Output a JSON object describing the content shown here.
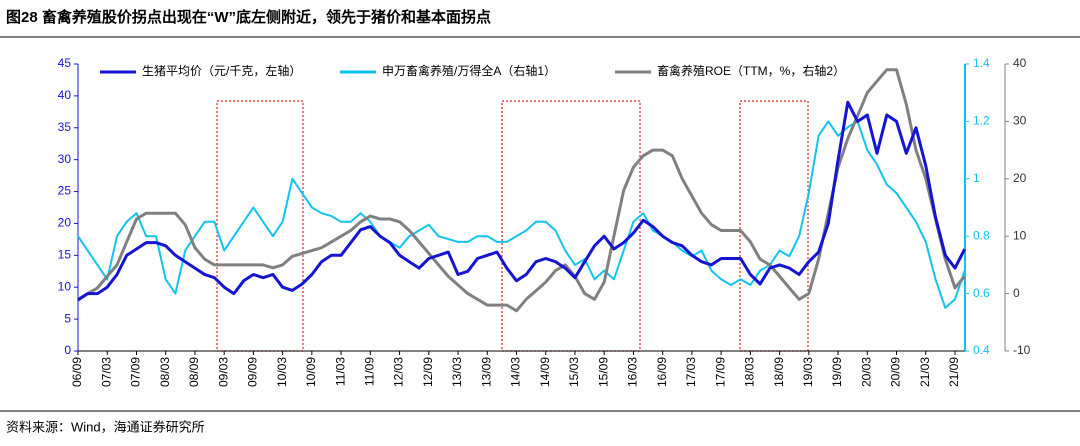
{
  "chart_data": {
    "type": "line",
    "title": "图28 畜禽养殖股价拐点出现在“W”底左侧附近，领先于猪价和基本面拐点",
    "source": "资料来源：Wind，海通证券研究所",
    "categories": [
      "06/09",
      null,
      null,
      "07/03",
      null,
      null,
      "07/09",
      null,
      null,
      "08/03",
      null,
      null,
      "08/09",
      null,
      null,
      "09/03",
      null,
      null,
      "09/09",
      null,
      null,
      "10/03",
      null,
      null,
      "10/09",
      null,
      null,
      "11/03",
      null,
      null,
      "11/09",
      null,
      null,
      "12/03",
      null,
      null,
      "12/09",
      null,
      null,
      "13/03",
      null,
      null,
      "13/09",
      null,
      null,
      "14/03",
      null,
      null,
      "14/09",
      null,
      null,
      "15/03",
      null,
      null,
      "15/09",
      null,
      null,
      "16/03",
      null,
      null,
      "16/09",
      null,
      null,
      "17/03",
      null,
      null,
      "17/09",
      null,
      null,
      "18/03",
      null,
      null,
      "18/09",
      null,
      null,
      "19/03",
      null,
      null,
      "19/09",
      null,
      null,
      "20/03",
      null,
      null,
      "20/09",
      null,
      null,
      "21/03",
      null,
      null,
      "21/09",
      null
    ],
    "ylim": [
      0,
      45
    ],
    "yticks": [
      0,
      5,
      10,
      15,
      20,
      25,
      30,
      35,
      40,
      45
    ],
    "y2lim": [
      0.4,
      1.4
    ],
    "y2ticks": [
      0.4,
      0.6,
      0.8,
      1,
      1.2,
      1.4
    ],
    "y3lim": [
      -10,
      40
    ],
    "y3ticks": [
      -10,
      0,
      10,
      20,
      30,
      40
    ],
    "series": [
      {
        "name": "生猪平均价（元/千克，左轴）",
        "color": "#1414d2",
        "axis": "y",
        "values": [
          8,
          9,
          9,
          10,
          12,
          15,
          16,
          17,
          17,
          16.5,
          15,
          14,
          13,
          12,
          11.5,
          10,
          9,
          11,
          12,
          11.5,
          12,
          10,
          9.5,
          10.5,
          12,
          14,
          15,
          15,
          17,
          19,
          19.5,
          18,
          17,
          15,
          14,
          13,
          14.5,
          15,
          15.5,
          12,
          12.5,
          14.5,
          15,
          15.5,
          13,
          11,
          12,
          14,
          14.5,
          14,
          13,
          11.5,
          14,
          16.5,
          18,
          16,
          17,
          18.5,
          20.5,
          19.5,
          18,
          17,
          16.5,
          15,
          14,
          13.5,
          14.5,
          14.5,
          14.5,
          12,
          10.5,
          13,
          13.5,
          13,
          12,
          14,
          15.5,
          20,
          30,
          39,
          36,
          37,
          31,
          37,
          36,
          31,
          35,
          29,
          21,
          15,
          13,
          16
        ]
      },
      {
        "name": "申万畜禽养殖/万得全A（右轴1）",
        "color": "#12c2f0",
        "axis": "y2",
        "values": [
          0.8,
          0.75,
          0.7,
          0.65,
          0.8,
          0.85,
          0.88,
          0.8,
          0.8,
          0.65,
          0.6,
          0.75,
          0.8,
          0.85,
          0.85,
          0.75,
          0.8,
          0.85,
          0.9,
          0.85,
          0.8,
          0.85,
          1.0,
          0.95,
          0.9,
          0.88,
          0.87,
          0.85,
          0.85,
          0.88,
          0.85,
          0.8,
          0.78,
          0.76,
          0.8,
          0.82,
          0.84,
          0.8,
          0.79,
          0.78,
          0.78,
          0.8,
          0.8,
          0.78,
          0.78,
          0.8,
          0.82,
          0.85,
          0.85,
          0.82,
          0.75,
          0.7,
          0.72,
          0.65,
          0.68,
          0.65,
          0.75,
          0.85,
          0.88,
          0.82,
          0.8,
          0.78,
          0.75,
          0.73,
          0.75,
          0.68,
          0.65,
          0.63,
          0.65,
          0.63,
          0.68,
          0.7,
          0.75,
          0.73,
          0.8,
          0.95,
          1.15,
          1.2,
          1.15,
          1.18,
          1.2,
          1.1,
          1.05,
          0.98,
          0.95,
          0.9,
          0.85,
          0.78,
          0.65,
          0.55,
          0.58,
          0.68
        ]
      },
      {
        "name": "畜禽养殖ROE（TTM，%，右轴2）",
        "color": "#808080",
        "axis": "y3",
        "values": [
          -1,
          0,
          1,
          3,
          5,
          9,
          13,
          14,
          14,
          14,
          14,
          12,
          8,
          6,
          5,
          5,
          5,
          5,
          5,
          5,
          4.5,
          5,
          6.5,
          7,
          7.5,
          8,
          9,
          10,
          11,
          12.5,
          13.5,
          13,
          13,
          12.5,
          11,
          9,
          7,
          5,
          3,
          1.5,
          0,
          -1,
          -2,
          -2,
          -2,
          -3,
          -1,
          0.5,
          2,
          4,
          5,
          3,
          0,
          -1,
          2,
          10,
          18,
          22,
          24,
          25,
          25,
          24,
          20,
          17,
          14,
          12,
          11,
          11,
          11,
          9,
          6,
          5,
          3,
          1,
          -1,
          0,
          6,
          14,
          22,
          27,
          31,
          35,
          37,
          39,
          39,
          33,
          25,
          20,
          13,
          6,
          1,
          3
        ]
      }
    ]
  }
}
